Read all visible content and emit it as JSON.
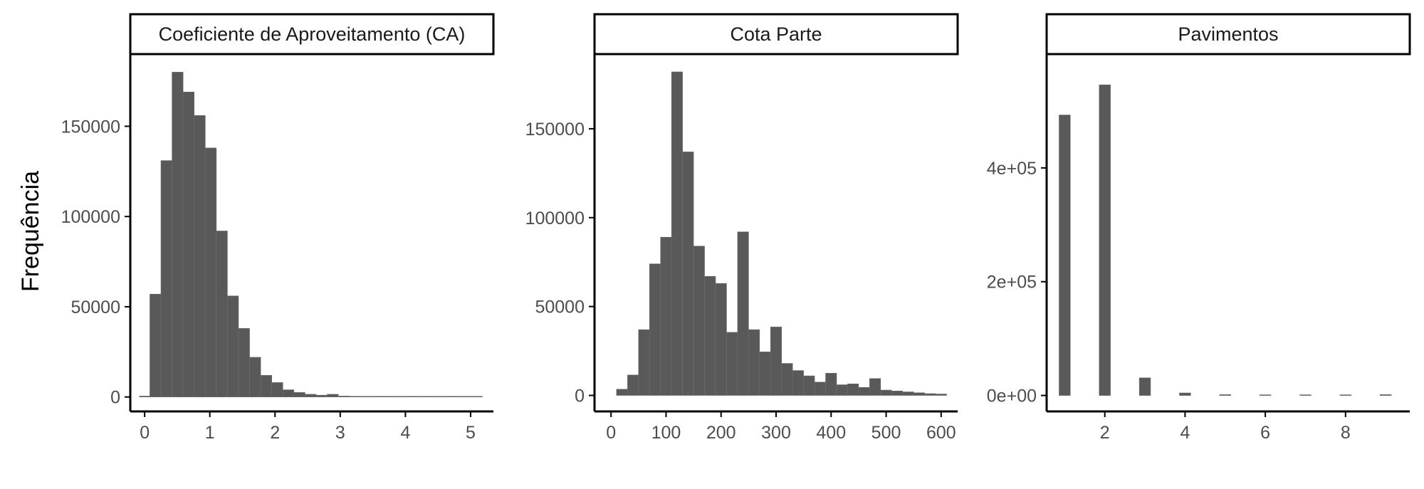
{
  "figure": {
    "ylabel": "Frequência",
    "bar_color": "#595959",
    "bar_edge_color": "#6e6e6e",
    "axis_color": "#000000",
    "tick_label_color": "#4d4d4d",
    "strip_fill": "#ffffff"
  },
  "chart_data": [
    {
      "type": "bar",
      "title": "Coeficiente de Aproveitamento (CA)",
      "xlabel": "",
      "ylabel": "Frequência",
      "xlim": [
        -0.22,
        5.35
      ],
      "ylim": [
        -8000,
        190000
      ],
      "xticks": [
        0,
        1,
        2,
        3,
        4,
        5
      ],
      "xtick_labels": [
        "0",
        "1",
        "2",
        "3",
        "4",
        "5"
      ],
      "yticks": [
        0,
        50000,
        100000,
        150000
      ],
      "ytick_labels": [
        "0",
        "50000",
        "100000",
        "150000"
      ],
      "bins": [
        {
          "x0": -0.08,
          "x1": 0.08,
          "count": 500
        },
        {
          "x0": 0.08,
          "x1": 0.25,
          "count": 57000
        },
        {
          "x0": 0.25,
          "x1": 0.42,
          "count": 131000
        },
        {
          "x0": 0.42,
          "x1": 0.59,
          "count": 180000
        },
        {
          "x0": 0.59,
          "x1": 0.76,
          "count": 169000
        },
        {
          "x0": 0.76,
          "x1": 0.93,
          "count": 156000
        },
        {
          "x0": 0.93,
          "x1": 1.1,
          "count": 138000
        },
        {
          "x0": 1.1,
          "x1": 1.27,
          "count": 92000
        },
        {
          "x0": 1.27,
          "x1": 1.44,
          "count": 56000
        },
        {
          "x0": 1.44,
          "x1": 1.61,
          "count": 38000
        },
        {
          "x0": 1.61,
          "x1": 1.78,
          "count": 22000
        },
        {
          "x0": 1.78,
          "x1": 1.95,
          "count": 12000
        },
        {
          "x0": 1.95,
          "x1": 2.12,
          "count": 8000
        },
        {
          "x0": 2.12,
          "x1": 2.29,
          "count": 4000
        },
        {
          "x0": 2.29,
          "x1": 2.46,
          "count": 2500
        },
        {
          "x0": 2.46,
          "x1": 2.63,
          "count": 1500
        },
        {
          "x0": 2.63,
          "x1": 2.8,
          "count": 1000
        },
        {
          "x0": 2.8,
          "x1": 2.97,
          "count": 1500
        },
        {
          "x0": 2.97,
          "x1": 3.14,
          "count": 500
        },
        {
          "x0": 3.14,
          "x1": 3.31,
          "count": 400
        },
        {
          "x0": 3.31,
          "x1": 3.48,
          "count": 300
        },
        {
          "x0": 3.48,
          "x1": 3.65,
          "count": 250
        },
        {
          "x0": 3.65,
          "x1": 3.82,
          "count": 200
        },
        {
          "x0": 3.82,
          "x1": 3.99,
          "count": 180
        },
        {
          "x0": 3.99,
          "x1": 4.16,
          "count": 150
        },
        {
          "x0": 4.16,
          "x1": 4.33,
          "count": 120
        },
        {
          "x0": 4.33,
          "x1": 4.5,
          "count": 100
        },
        {
          "x0": 4.5,
          "x1": 4.67,
          "count": 80
        },
        {
          "x0": 4.67,
          "x1": 4.84,
          "count": 60
        },
        {
          "x0": 4.84,
          "x1": 5.01,
          "count": 50
        },
        {
          "x0": 5.01,
          "x1": 5.18,
          "count": 40
        }
      ]
    },
    {
      "type": "bar",
      "title": "Cota Parte",
      "xlabel": "",
      "ylabel": "",
      "xlim": [
        -30,
        630
      ],
      "ylim": [
        -9000,
        192000
      ],
      "xticks": [
        0,
        100,
        200,
        300,
        400,
        500,
        600
      ],
      "xtick_labels": [
        "0",
        "100",
        "200",
        "300",
        "400",
        "500",
        "600"
      ],
      "yticks": [
        0,
        50000,
        100000,
        150000
      ],
      "ytick_labels": [
        "0",
        "50000",
        "100000",
        "150000"
      ],
      "bins": [
        {
          "x0": 10,
          "x1": 30,
          "count": 3500
        },
        {
          "x0": 30,
          "x1": 50,
          "count": 11500
        },
        {
          "x0": 50,
          "x1": 70,
          "count": 37000
        },
        {
          "x0": 70,
          "x1": 90,
          "count": 74000
        },
        {
          "x0": 90,
          "x1": 110,
          "count": 89000
        },
        {
          "x0": 110,
          "x1": 130,
          "count": 182000
        },
        {
          "x0": 130,
          "x1": 150,
          "count": 137000
        },
        {
          "x0": 150,
          "x1": 170,
          "count": 84000
        },
        {
          "x0": 170,
          "x1": 190,
          "count": 67000
        },
        {
          "x0": 190,
          "x1": 210,
          "count": 63000
        },
        {
          "x0": 210,
          "x1": 230,
          "count": 35500
        },
        {
          "x0": 230,
          "x1": 250,
          "count": 92000
        },
        {
          "x0": 250,
          "x1": 270,
          "count": 37000
        },
        {
          "x0": 270,
          "x1": 290,
          "count": 24500
        },
        {
          "x0": 290,
          "x1": 310,
          "count": 38500
        },
        {
          "x0": 310,
          "x1": 330,
          "count": 18000
        },
        {
          "x0": 330,
          "x1": 350,
          "count": 14000
        },
        {
          "x0": 350,
          "x1": 370,
          "count": 11000
        },
        {
          "x0": 370,
          "x1": 390,
          "count": 7500
        },
        {
          "x0": 390,
          "x1": 410,
          "count": 12500
        },
        {
          "x0": 410,
          "x1": 430,
          "count": 6000
        },
        {
          "x0": 430,
          "x1": 450,
          "count": 6500
        },
        {
          "x0": 450,
          "x1": 470,
          "count": 4500
        },
        {
          "x0": 470,
          "x1": 490,
          "count": 9500
        },
        {
          "x0": 490,
          "x1": 510,
          "count": 3000
        },
        {
          "x0": 510,
          "x1": 530,
          "count": 2500
        },
        {
          "x0": 530,
          "x1": 550,
          "count": 2000
        },
        {
          "x0": 550,
          "x1": 570,
          "count": 1500
        },
        {
          "x0": 570,
          "x1": 590,
          "count": 1000
        },
        {
          "x0": 590,
          "x1": 610,
          "count": 800
        }
      ]
    },
    {
      "type": "bar",
      "title": "Pavimentos",
      "xlabel": "",
      "ylabel": "",
      "xlim": [
        0.55,
        9.6
      ],
      "ylim": [
        -28000,
        600000
      ],
      "xticks": [
        2,
        4,
        6,
        8
      ],
      "xtick_labels": [
        "2",
        "4",
        "6",
        "8"
      ],
      "yticks": [
        0,
        200000,
        400000
      ],
      "ytick_labels": [
        "0e+00",
        "2e+05",
        "4e+05"
      ],
      "bins": [
        {
          "x0": 0.86,
          "x1": 1.14,
          "count": 493000
        },
        {
          "x0": 1.86,
          "x1": 2.14,
          "count": 546000
        },
        {
          "x0": 2.86,
          "x1": 3.14,
          "count": 31000
        },
        {
          "x0": 3.86,
          "x1": 4.14,
          "count": 4500
        },
        {
          "x0": 4.86,
          "x1": 5.14,
          "count": 1500
        },
        {
          "x0": 5.86,
          "x1": 6.14,
          "count": 500
        },
        {
          "x0": 6.86,
          "x1": 7.14,
          "count": 400
        },
        {
          "x0": 7.86,
          "x1": 8.14,
          "count": 300
        },
        {
          "x0": 8.86,
          "x1": 9.14,
          "count": 1500
        }
      ]
    }
  ]
}
